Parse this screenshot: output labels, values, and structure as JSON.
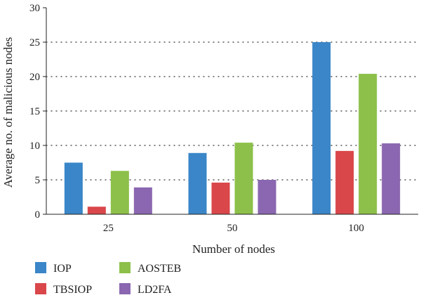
{
  "chart_data": {
    "type": "bar",
    "title": "",
    "xlabel": "Number of nodes",
    "ylabel": "Average no. of malicious nodes",
    "categories": [
      "25",
      "50",
      "100"
    ],
    "ylim": [
      0,
      30
    ],
    "yticks": [
      0,
      5,
      10,
      15,
      20,
      25,
      30
    ],
    "grid": "horizontal dotted",
    "legend_position": "bottom-left",
    "series": [
      {
        "name": "IOP",
        "color": "#3a86c8",
        "values": [
          7.5,
          8.9,
          25.0
        ]
      },
      {
        "name": "TBSIOP",
        "color": "#d9474a",
        "values": [
          1.1,
          4.6,
          9.2
        ]
      },
      {
        "name": "AOSTEB",
        "color": "#8dc04a",
        "values": [
          6.3,
          10.4,
          20.4
        ]
      },
      {
        "name": "LD2FA",
        "color": "#8a67b0",
        "values": [
          3.9,
          5.0,
          10.3
        ]
      }
    ]
  }
}
